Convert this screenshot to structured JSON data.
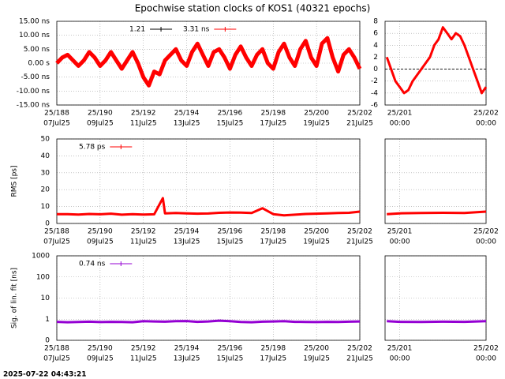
{
  "title": "Epochwise station clocks of KOS1 (40321 epochs)",
  "timestamp": "2025-07-22 04:43:21",
  "chart_data": [
    {
      "type": "line",
      "xlim": [
        188,
        202
      ],
      "ylim": [
        -15,
        15
      ],
      "yticks": [
        {
          "value": 15,
          "label": "15.00 ns"
        },
        {
          "value": 10,
          "label": "10.00 ns"
        },
        {
          "value": 5,
          "label": "5.00 ns"
        },
        {
          "value": 0,
          "label": "0.00 s"
        },
        {
          "value": -5,
          "label": "-5.00 ns"
        },
        {
          "value": -10,
          "label": "-10.00 ns"
        },
        {
          "value": -15,
          "label": "-15.00 ns"
        }
      ],
      "xticks": [
        {
          "value": 188,
          "label": "25/188"
        },
        {
          "value": 190,
          "label": "25/190"
        },
        {
          "value": 192,
          "label": "25/192"
        },
        {
          "value": 194,
          "label": "25/194"
        },
        {
          "value": 196,
          "label": "25/196"
        },
        {
          "value": 198,
          "label": "25/198"
        },
        {
          "value": 200,
          "label": "25/200"
        },
        {
          "value": 202,
          "label": "25/202"
        }
      ],
      "xtick_sublabels": [
        "07Jul25",
        "09Jul25",
        "11Jul25",
        "13Jul25",
        "15Jul25",
        "17Jul25",
        "19Jul25",
        "21Jul25"
      ],
      "grid": true,
      "legend": "top",
      "series": [
        {
          "name": "1.21",
          "color": "#000000",
          "x": [],
          "values": []
        },
        {
          "name": "3.31 ns",
          "color": "#ff0000",
          "x": [
            188,
            188.25,
            188.5,
            188.75,
            189,
            189.25,
            189.5,
            189.75,
            190,
            190.25,
            190.5,
            190.75,
            191,
            191.25,
            191.5,
            191.75,
            192,
            192.25,
            192.5,
            192.75,
            193,
            193.25,
            193.5,
            193.75,
            194,
            194.25,
            194.5,
            194.75,
            195,
            195.25,
            195.5,
            195.75,
            196,
            196.25,
            196.5,
            196.75,
            197,
            197.25,
            197.5,
            197.75,
            198,
            198.25,
            198.5,
            198.75,
            199,
            199.25,
            199.5,
            199.75,
            200,
            200.25,
            200.5,
            200.75,
            201,
            201.25,
            201.5,
            201.75,
            202
          ],
          "values": [
            0,
            2,
            3,
            1,
            -1,
            1,
            4,
            2,
            -1,
            1,
            4,
            1,
            -2,
            1,
            4,
            0,
            -5,
            -8,
            -3,
            -4,
            1,
            3,
            5,
            1,
            -1,
            4,
            7,
            3,
            -1,
            4,
            5,
            2,
            -2,
            3,
            6,
            2,
            -1,
            3,
            5,
            0,
            -2,
            4,
            7,
            2,
            -1,
            5,
            8,
            2,
            -1,
            7,
            9,
            2,
            -3,
            3,
            5,
            2,
            -2
          ]
        }
      ]
    },
    {
      "type": "line",
      "xlim": [
        200.83,
        202
      ],
      "ylim": [
        -6,
        8
      ],
      "yticks": [
        8,
        6,
        4,
        2,
        0,
        -2,
        -4,
        -6
      ],
      "xticks": [
        {
          "value": 201,
          "label": "25/201"
        },
        {
          "value": 202,
          "label": "25/202"
        }
      ],
      "xtick_sublabels": [
        "00:00",
        "00:00"
      ],
      "grid": true,
      "zeroaxis": true,
      "series": [
        {
          "color": "#ff0000",
          "x": [
            200.85,
            200.9,
            200.95,
            201,
            201.05,
            201.1,
            201.15,
            201.2,
            201.25,
            201.3,
            201.35,
            201.4,
            201.45,
            201.5,
            201.55,
            201.6,
            201.65,
            201.7,
            201.75,
            201.8,
            201.85,
            201.9,
            201.95,
            202
          ],
          "values": [
            2,
            0,
            -2,
            -3,
            -4,
            -3.5,
            -2,
            -1,
            0,
            1,
            2,
            4,
            5,
            7,
            6,
            5,
            6,
            5.5,
            4,
            2,
            0,
            -2,
            -4,
            -3
          ]
        }
      ]
    },
    {
      "type": "line",
      "ylabel": "RMS [ps]",
      "xlim": [
        188,
        202
      ],
      "ylim": [
        0,
        50
      ],
      "yticks": [
        0,
        10,
        20,
        30,
        40,
        50
      ],
      "xticks": [
        {
          "value": 188,
          "label": "25/188"
        },
        {
          "value": 190,
          "label": "25/190"
        },
        {
          "value": 192,
          "label": "25/192"
        },
        {
          "value": 194,
          "label": "25/194"
        },
        {
          "value": 196,
          "label": "25/196"
        },
        {
          "value": 198,
          "label": "25/198"
        },
        {
          "value": 200,
          "label": "25/200"
        },
        {
          "value": 202,
          "label": "25/202"
        }
      ],
      "xtick_sublabels": [
        "07Jul25",
        "09Jul25",
        "11Jul25",
        "13Jul25",
        "15Jul25",
        "17Jul25",
        "19Jul25",
        "21Jul25"
      ],
      "grid": true,
      "legend": "top",
      "series": [
        {
          "name": "5.78 ps",
          "color": "#ff0000",
          "x": [
            188,
            188.5,
            189,
            189.5,
            190,
            190.5,
            191,
            191.5,
            192,
            192.5,
            192.9,
            193,
            193.5,
            194,
            194.5,
            195,
            195.5,
            196,
            196.5,
            197,
            197.5,
            198,
            198.5,
            199,
            199.5,
            200,
            200.5,
            201,
            201.5,
            202
          ],
          "values": [
            5.5,
            5.5,
            5.3,
            5.6,
            5.4,
            5.8,
            5.2,
            5.5,
            5.3,
            5.4,
            15,
            6,
            6.2,
            6,
            5.8,
            5.9,
            6.3,
            6.5,
            6.4,
            6.2,
            9,
            5.5,
            4.8,
            5.2,
            5.6,
            5.8,
            6,
            6.2,
            6.3,
            7
          ]
        }
      ]
    },
    {
      "type": "line",
      "xlim": [
        200.83,
        202
      ],
      "ylim": [
        0,
        50
      ],
      "yticks": [
        0,
        10,
        20,
        30,
        40,
        50
      ],
      "xticks": [
        {
          "value": 201,
          "label": "25/201"
        },
        {
          "value": 202,
          "label": "25/202"
        }
      ],
      "xtick_sublabels": [
        "00:00",
        "00:00"
      ],
      "grid": true,
      "series": [
        {
          "color": "#ff0000",
          "x": [
            200.85,
            201,
            201.25,
            201.5,
            201.75,
            202
          ],
          "values": [
            5.5,
            6,
            6.2,
            6.3,
            6.2,
            7
          ]
        }
      ]
    },
    {
      "type": "line",
      "ylabel": "Sig. of lin. fit [ns]",
      "xlim": [
        188,
        202
      ],
      "ylim": [
        0.1,
        1000
      ],
      "log": true,
      "yticks": [
        {
          "value": 0.1,
          "label": "0"
        },
        1,
        10,
        100,
        1000
      ],
      "xticks": [
        {
          "value": 188,
          "label": "25/188"
        },
        {
          "value": 190,
          "label": "25/190"
        },
        {
          "value": 192,
          "label": "25/192"
        },
        {
          "value": 194,
          "label": "25/194"
        },
        {
          "value": 196,
          "label": "25/196"
        },
        {
          "value": 198,
          "label": "25/198"
        },
        {
          "value": 200,
          "label": "25/200"
        },
        {
          "value": 202,
          "label": "25/202"
        }
      ],
      "xtick_sublabels": [
        "07Jul25",
        "09Jul25",
        "11Jul25",
        "13Jul25",
        "15Jul25",
        "17Jul25",
        "19Jul25",
        "21Jul25"
      ],
      "grid": true,
      "legend": "top",
      "series": [
        {
          "name": "0.74 ns",
          "color": "#9400d3",
          "x": [
            188,
            188.5,
            189,
            189.5,
            190,
            190.5,
            191,
            191.5,
            192,
            192.5,
            193,
            193.5,
            194,
            194.5,
            195,
            195.5,
            196,
            196.5,
            197,
            197.5,
            198,
            198.5,
            199,
            199.5,
            200,
            200.5,
            201,
            201.5,
            202
          ],
          "values": [
            0.75,
            0.72,
            0.74,
            0.76,
            0.73,
            0.75,
            0.74,
            0.72,
            0.8,
            0.78,
            0.76,
            0.8,
            0.82,
            0.75,
            0.78,
            0.85,
            0.8,
            0.74,
            0.72,
            0.76,
            0.78,
            0.8,
            0.75,
            0.74,
            0.73,
            0.75,
            0.74,
            0.76,
            0.78
          ]
        }
      ]
    },
    {
      "type": "line",
      "xlim": [
        200.83,
        202
      ],
      "ylim": [
        0.1,
        1000
      ],
      "log": true,
      "yticks": [
        {
          "value": 0.1,
          "label": "0"
        },
        1,
        10,
        100,
        1000
      ],
      "xticks": [
        {
          "value": 201,
          "label": "25/201"
        },
        {
          "value": 202,
          "label": "25/202"
        }
      ],
      "xtick_sublabels": [
        "00:00",
        "00:00"
      ],
      "grid": true,
      "series": [
        {
          "color": "#9400d3",
          "x": [
            200.85,
            201,
            201.25,
            201.5,
            201.75,
            202
          ],
          "values": [
            0.8,
            0.75,
            0.74,
            0.76,
            0.75,
            0.8
          ]
        }
      ]
    }
  ]
}
